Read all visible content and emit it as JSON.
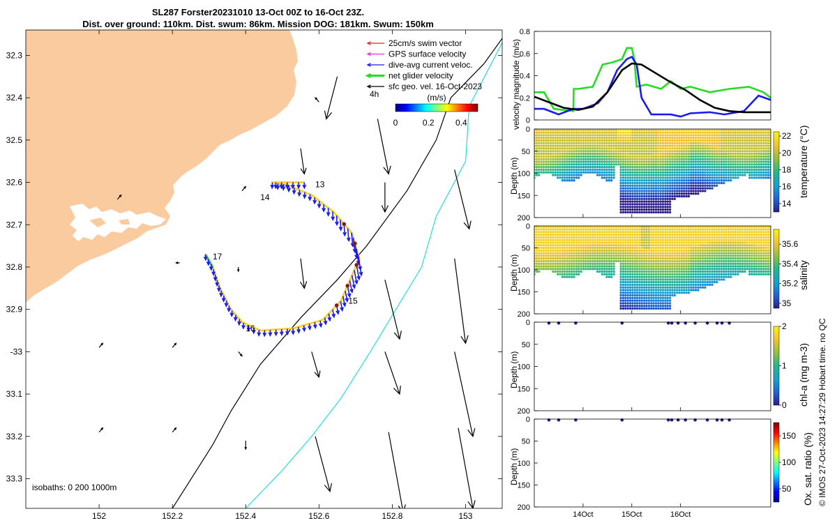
{
  "title": {
    "line1": "SL287 Forster20231010 13-Oct 00Z to 16-Oct 23Z.",
    "line2": "Dist. over ground: 110km. Dist. swum: 86km. Mission DOG: 181km. Swum: 150km"
  },
  "credit": "© IMOS 27-Oct-2023 14:27:29 Hobart time. no QC",
  "colors": {
    "land": "#fbcba0",
    "swim_vector": "#e0261f",
    "gps_vector": "#e22ee0",
    "dive_current": "#1a1aee",
    "net_velocity": "#22dd22",
    "geo_velocity": "#000000",
    "isobath_200": "#000000",
    "isobath_1000": "#22dddd",
    "track_line": "#f7d23a"
  },
  "chart_data": [
    {
      "id": "map",
      "type": "scatter",
      "title": "SL287 Forster20231010 13-Oct 00Z to 16-Oct 23Z.",
      "xlim": [
        151.8,
        153.1
      ],
      "ylim": [
        -33.37,
        -32.24
      ],
      "x_ticks": [
        152,
        152.2,
        152.4,
        152.6,
        152.8,
        153
      ],
      "x_tick_labels": [
        "152",
        "152.2",
        "152.4",
        "152.6",
        "152.8",
        "153"
      ],
      "y_ticks": [
        -32.3,
        -32.4,
        -32.5,
        -32.6,
        -32.7,
        -32.8,
        -32.9,
        -33,
        -33.1,
        -33.2,
        -33.3
      ],
      "y_tick_labels": [
        "32.3",
        "32.4",
        "32.5",
        "32.6",
        "32.7",
        "32.8",
        "32.9",
        "-33",
        "33.1",
        "33.2",
        "33.3"
      ],
      "legend": [
        {
          "label": "25cm/s swim vector",
          "color_key": "swim_vector"
        },
        {
          "label": "GPS surface velocity",
          "color_key": "gps_vector"
        },
        {
          "label": "dive-avg current veloc.",
          "color_key": "dive_current"
        },
        {
          "label": "net glider velocity",
          "color_key": "net_velocity"
        },
        {
          "label": "sfc geo. vel. 16-Oct-2023",
          "color_key": "geo_velocity"
        }
      ],
      "legend_position": "top-right",
      "colorbar": {
        "label": "(m/s)",
        "range": [
          0,
          0.5
        ],
        "ticks": [
          0,
          0.2,
          0.4
        ],
        "tick_labels": [
          "0",
          "0.2",
          "0.4"
        ]
      },
      "scale_label": "4h",
      "isobath_label": "isobaths: 0   200  1000m",
      "isobath_200m": [
        [
          152.2,
          -33.37
        ],
        [
          152.31,
          -33.22
        ],
        [
          152.36,
          -33.14
        ],
        [
          152.44,
          -33.03
        ],
        [
          152.55,
          -32.92
        ],
        [
          152.65,
          -32.83
        ],
        [
          152.73,
          -32.75
        ],
        [
          152.84,
          -32.62
        ],
        [
          152.92,
          -32.5
        ],
        [
          152.96,
          -32.4
        ],
        [
          153.05,
          -32.32
        ],
        [
          153.1,
          -32.26
        ]
      ],
      "isobath_1000m": [
        [
          152.4,
          -33.37
        ],
        [
          152.5,
          -33.28
        ],
        [
          152.58,
          -33.2
        ],
        [
          152.66,
          -33.11
        ],
        [
          152.74,
          -33.0
        ],
        [
          152.81,
          -32.9
        ],
        [
          152.88,
          -32.8
        ],
        [
          152.92,
          -32.68
        ],
        [
          153.0,
          -32.55
        ],
        [
          153.01,
          -32.42
        ],
        [
          153.1,
          -32.27
        ]
      ],
      "glider_track": [
        [
          152.29,
          -32.77
        ],
        [
          152.31,
          -32.8
        ],
        [
          152.33,
          -32.85
        ],
        [
          152.36,
          -32.9
        ],
        [
          152.39,
          -32.93
        ],
        [
          152.44,
          -32.95
        ],
        [
          152.53,
          -32.945
        ],
        [
          152.61,
          -32.925
        ],
        [
          152.66,
          -32.88
        ],
        [
          152.7,
          -32.8
        ],
        [
          152.71,
          -32.78
        ],
        [
          152.69,
          -32.72
        ],
        [
          152.64,
          -32.67
        ],
        [
          152.58,
          -32.63
        ],
        [
          152.51,
          -32.605
        ],
        [
          152.47,
          -32.6
        ],
        [
          152.56,
          -32.6
        ]
      ],
      "day_labels": [
        {
          "label": "13",
          "lon": 152.59,
          "lat": -32.605
        },
        {
          "label": "14",
          "lon": 152.44,
          "lat": -32.635
        },
        {
          "label": "15",
          "lon": 152.68,
          "lat": -32.88
        },
        {
          "label": "16",
          "lon": 152.4,
          "lat": -32.945
        },
        {
          "label": "17",
          "lon": 152.31,
          "lat": -32.775
        }
      ],
      "geo_velocity_arrows": [
        {
          "lon": 152.65,
          "lat": -32.35,
          "u": -0.03,
          "v": -0.1
        },
        {
          "lon": 152.76,
          "lat": -32.45,
          "u": 0.03,
          "v": -0.13
        },
        {
          "lon": 152.55,
          "lat": -32.52,
          "u": 0.01,
          "v": -0.06
        },
        {
          "lon": 152.78,
          "lat": -32.6,
          "u": 0.0,
          "v": -0.07
        },
        {
          "lon": 152.97,
          "lat": -32.57,
          "u": 0.04,
          "v": -0.14
        },
        {
          "lon": 152.55,
          "lat": -32.78,
          "u": 0.01,
          "v": -0.07
        },
        {
          "lon": 152.78,
          "lat": -32.83,
          "u": 0.04,
          "v": -0.14
        },
        {
          "lon": 152.97,
          "lat": -32.78,
          "u": 0.03,
          "v": -0.2
        },
        {
          "lon": 152.58,
          "lat": -33.0,
          "u": 0.02,
          "v": -0.06
        },
        {
          "lon": 152.78,
          "lat": -33.0,
          "u": 0.04,
          "v": -0.1
        },
        {
          "lon": 152.97,
          "lat": -33.0,
          "u": 0.05,
          "v": -0.2
        },
        {
          "lon": 152.59,
          "lat": -33.2,
          "u": 0.04,
          "v": -0.13
        },
        {
          "lon": 152.79,
          "lat": -33.19,
          "u": 0.04,
          "v": -0.19
        },
        {
          "lon": 152.98,
          "lat": -33.18,
          "u": 0.04,
          "v": -0.19
        },
        {
          "lon": 152.05,
          "lat": -32.64,
          "u": 0.01,
          "v": 0.01
        },
        {
          "lon": 152.39,
          "lat": -32.62,
          "u": 0.01,
          "v": 0.01
        },
        {
          "lon": 152.38,
          "lat": -32.8,
          "u": 0.0,
          "v": -0.01
        },
        {
          "lon": 152.22,
          "lat": -32.79,
          "u": -0.01,
          "v": 0.0
        },
        {
          "lon": 152.0,
          "lat": -32.99,
          "u": 0.01,
          "v": 0.01
        },
        {
          "lon": 152.2,
          "lat": -32.99,
          "u": 0.01,
          "v": 0.01
        },
        {
          "lon": 152.38,
          "lat": -33.0,
          "u": 0.01,
          "v": -0.01
        },
        {
          "lon": 152.0,
          "lat": -33.19,
          "u": 0.01,
          "v": 0.01
        },
        {
          "lon": 152.2,
          "lat": -33.19,
          "u": 0.01,
          "v": 0.01
        },
        {
          "lon": 152.4,
          "lat": -33.21,
          "u": 0.0,
          "v": -0.02
        },
        {
          "lon": 152.6,
          "lat": -32.41,
          "u": -0.01,
          "v": 0.01
        }
      ]
    },
    {
      "id": "velocity",
      "type": "line",
      "ylabel": "velocity magnitude (m/s)",
      "xlim": [
        13.0,
        17.85
      ],
      "ylim": [
        0,
        0.8
      ],
      "y_ticks": [
        0,
        0.2,
        0.4,
        0.6,
        0.8
      ],
      "y_tick_labels": [
        "0",
        "0.2",
        "0.4",
        "0.6",
        "0.8"
      ],
      "series": [
        {
          "name": "net glider velocity",
          "color_key": "net_velocity",
          "x": [
            13.0,
            13.2,
            13.4,
            13.8,
            13.81,
            13.9,
            14.2,
            14.4,
            14.6,
            14.8,
            14.9,
            15.0,
            15.05,
            15.1,
            15.3,
            15.6,
            15.8,
            16.0,
            16.2,
            16.6,
            17.0,
            17.4,
            17.7,
            17.85
          ],
          "y": [
            0.25,
            0.25,
            0.1,
            0.08,
            0.28,
            0.28,
            0.3,
            0.5,
            0.52,
            0.55,
            0.65,
            0.65,
            0.55,
            0.3,
            0.32,
            0.28,
            0.35,
            0.28,
            0.3,
            0.25,
            0.28,
            0.3,
            0.25,
            0.2
          ]
        },
        {
          "name": "dive-avg current",
          "color_key": "dive_current",
          "x": [
            13.0,
            13.2,
            13.5,
            13.8,
            14.0,
            14.3,
            14.5,
            14.7,
            14.9,
            15.0,
            15.1,
            15.2,
            15.4,
            15.8,
            16.0,
            16.2,
            16.6,
            16.9,
            17.3,
            17.6,
            17.85
          ],
          "y": [
            0.1,
            0.1,
            0.05,
            0.1,
            0.1,
            0.15,
            0.25,
            0.45,
            0.55,
            0.57,
            0.5,
            0.2,
            0.05,
            0.05,
            0.03,
            0.06,
            0.07,
            0.05,
            0.08,
            0.22,
            0.18
          ]
        },
        {
          "name": "sfc geo. velocity",
          "color_key": "geo_velocity",
          "x": [
            13.0,
            13.3,
            13.6,
            13.9,
            14.2,
            14.5,
            14.8,
            15.0,
            15.2,
            15.5,
            15.8,
            16.1,
            16.4,
            16.7,
            17.0,
            17.3,
            17.6,
            17.85
          ],
          "y": [
            0.21,
            0.16,
            0.11,
            0.09,
            0.12,
            0.25,
            0.45,
            0.51,
            0.5,
            0.42,
            0.34,
            0.27,
            0.18,
            0.11,
            0.08,
            0.07,
            0.07,
            0.07
          ]
        }
      ]
    },
    {
      "id": "temperature",
      "type": "scatter",
      "variable": "temperature",
      "ylabel": "Depth (m)",
      "colorbar_label": "temperature (°C)",
      "clim": [
        13,
        22.5
      ],
      "colorbar_ticks": [
        14,
        16,
        18,
        20,
        22
      ],
      "ylim": [
        0,
        200
      ],
      "y_ticks": [
        0,
        50,
        100,
        150,
        200
      ],
      "y_tick_labels": [
        "0",
        "50",
        "100",
        "150",
        "200"
      ],
      "deep_profiles": [
        14.7,
        14.82,
        15.0,
        15.1,
        15.2,
        15.3,
        15.4,
        15.5,
        15.6,
        15.7
      ]
    },
    {
      "id": "salinity",
      "type": "scatter",
      "variable": "salinity",
      "ylabel": "Depth (m)",
      "colorbar_label": "salinity",
      "clim": [
        34.95,
        35.75
      ],
      "colorbar_ticks": [
        35,
        35.2,
        35.4,
        35.6
      ],
      "ylim": [
        0,
        200
      ],
      "y_ticks": [
        0,
        50,
        100,
        150,
        200
      ],
      "y_tick_labels": [
        "0",
        "50",
        "100",
        "150",
        "200"
      ]
    },
    {
      "id": "chla",
      "type": "scatter",
      "variable": "chl-a",
      "ylabel": "Depth (m)",
      "colorbar_label": "chl-a (mg m-3)",
      "clim": [
        0,
        2
      ],
      "colorbar_ticks": [
        0,
        1,
        2
      ],
      "ylim": [
        0,
        200
      ],
      "y_ticks": [
        0,
        50,
        100,
        150,
        200
      ],
      "y_tick_labels": [
        "0",
        "50",
        "100",
        "150",
        "200"
      ],
      "surface_points_x": [
        13.3,
        13.5,
        13.85,
        14.8,
        15.75,
        15.82,
        15.95,
        16.1,
        16.3,
        16.55,
        16.75,
        16.85,
        17.0
      ]
    },
    {
      "id": "oxygen",
      "type": "scatter",
      "variable": "Ox. sat. ratio",
      "ylabel": "Depth (m)",
      "colorbar_label": "Ox. sat. ratio (%)",
      "clim": [
        25,
        175
      ],
      "colorbar_ticks": [
        50,
        100,
        150
      ],
      "ylim": [
        0,
        200
      ],
      "y_ticks": [
        0,
        50,
        100,
        150,
        200
      ],
      "y_tick_labels": [
        "0",
        "50",
        "100",
        "150",
        "200"
      ],
      "surface_points_x": [
        13.3,
        13.5,
        13.85,
        14.8,
        15.75,
        15.82,
        15.95,
        16.1,
        16.3,
        16.55,
        16.75,
        16.85,
        17.0
      ],
      "x_ticks": [
        14,
        15,
        16
      ],
      "x_tick_labels": [
        "14Oct",
        "15Oct",
        "16Oct"
      ]
    }
  ]
}
